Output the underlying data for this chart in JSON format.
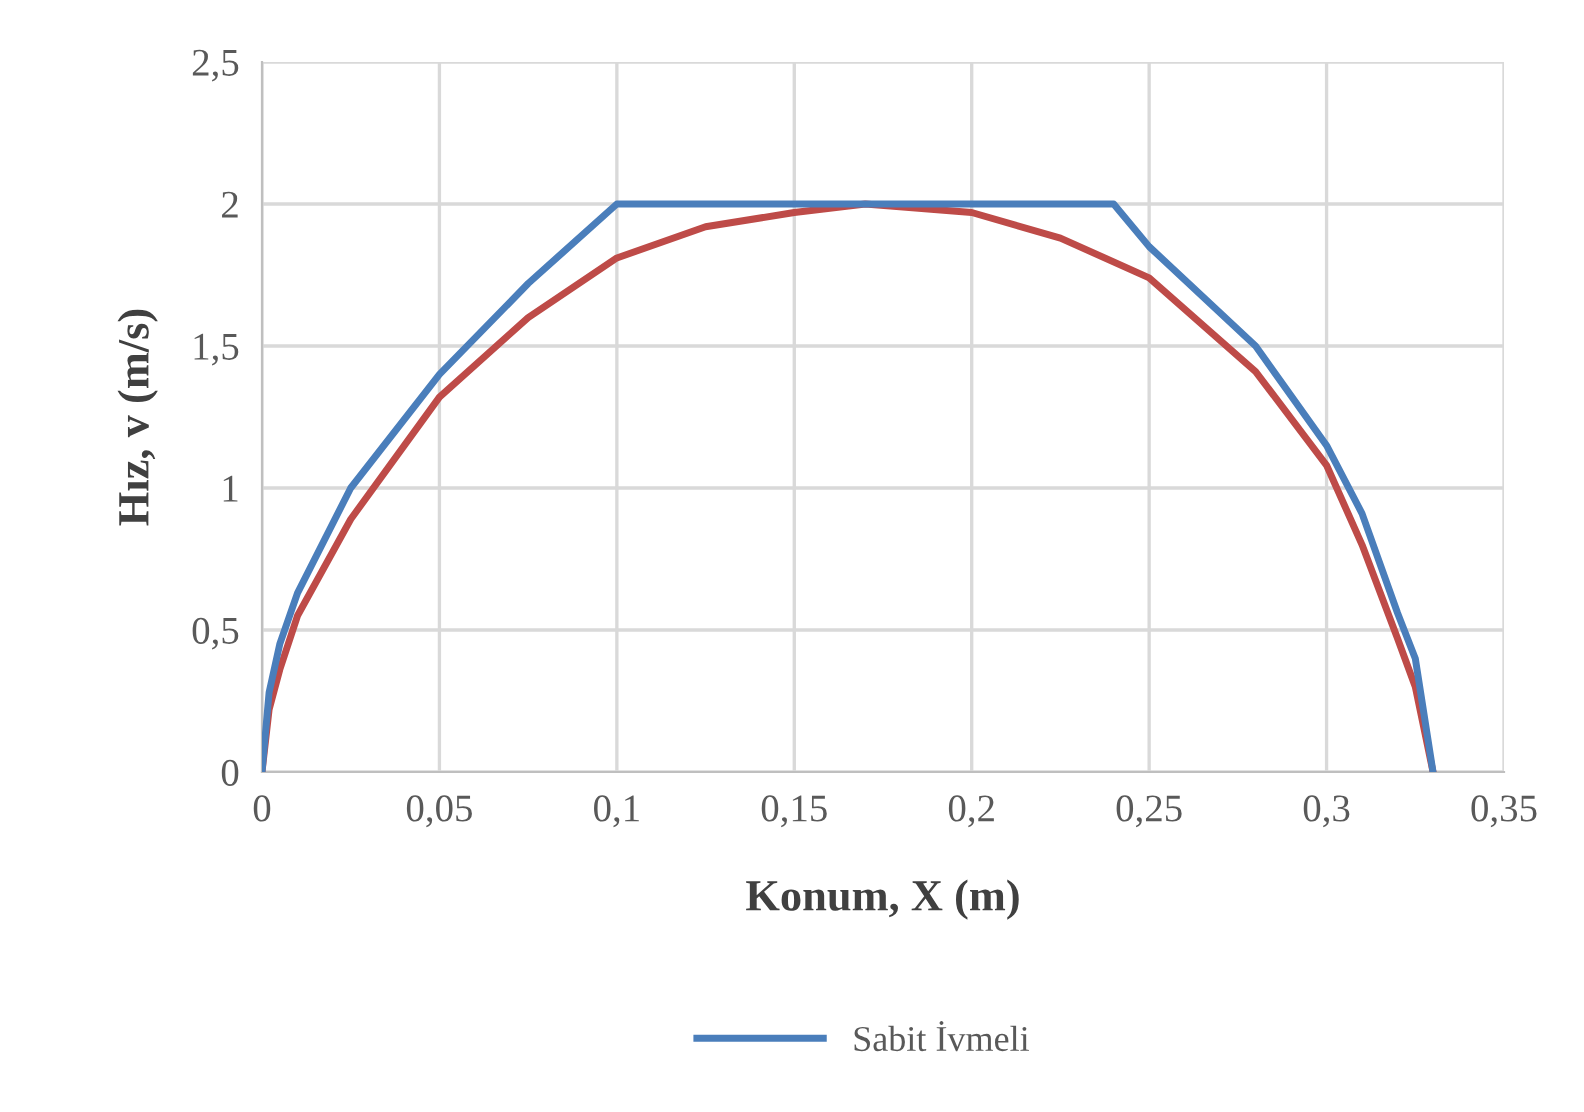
{
  "chart_data": {
    "type": "line",
    "xlabel": "Konum, X (m)",
    "ylabel": "Hız, v (m/s)",
    "xlim": [
      0,
      0.35
    ],
    "xticks": [
      {
        "value": 0,
        "label": "0"
      },
      {
        "value": 0.05,
        "label": "0,05"
      },
      {
        "value": 0.1,
        "label": "0,1"
      },
      {
        "value": 0.15,
        "label": "0,15"
      },
      {
        "value": 0.2,
        "label": "0,2"
      },
      {
        "value": 0.25,
        "label": "0,25"
      },
      {
        "value": 0.3,
        "label": "0,3"
      },
      {
        "value": 0.35,
        "label": "0,35"
      }
    ],
    "ylim": [
      0,
      2.5
    ],
    "yticks": [
      0,
      {
        "value": 0.5,
        "label": "0,5"
      },
      1,
      {
        "value": 1.5,
        "label": "1,5"
      },
      2,
      {
        "value": 2.5,
        "label": "2,5"
      }
    ],
    "grid": true,
    "legend": "bottom",
    "marker": "none",
    "line_style": "solid",
    "series": [
      {
        "name": "Sabit İvmeli",
        "color": "#4a7ebb",
        "x": [
          0,
          0.002,
          0.005,
          0.01,
          0.025,
          0.05,
          0.075,
          0.1,
          0.24,
          0.25,
          0.28,
          0.3,
          0.31,
          0.32,
          0.325,
          0.33
        ],
        "values": [
          0,
          0.28,
          0.45,
          0.63,
          1.0,
          1.4,
          1.72,
          2,
          2,
          1.85,
          1.5,
          1.15,
          0.91,
          0.56,
          0.4,
          0
        ]
      },
      {
        "color": "#be4b48",
        "x": [
          0,
          0.002,
          0.005,
          0.01,
          0.025,
          0.05,
          0.075,
          0.1,
          0.125,
          0.15,
          0.17,
          0.2,
          0.225,
          0.25,
          0.28,
          0.3,
          0.31,
          0.32,
          0.325,
          0.33
        ],
        "values": [
          0,
          0.22,
          0.36,
          0.55,
          0.89,
          1.32,
          1.6,
          1.81,
          1.92,
          1.97,
          2,
          1.97,
          1.88,
          1.74,
          1.41,
          1.08,
          0.8,
          0.47,
          0.3,
          0
        ]
      }
    ]
  }
}
